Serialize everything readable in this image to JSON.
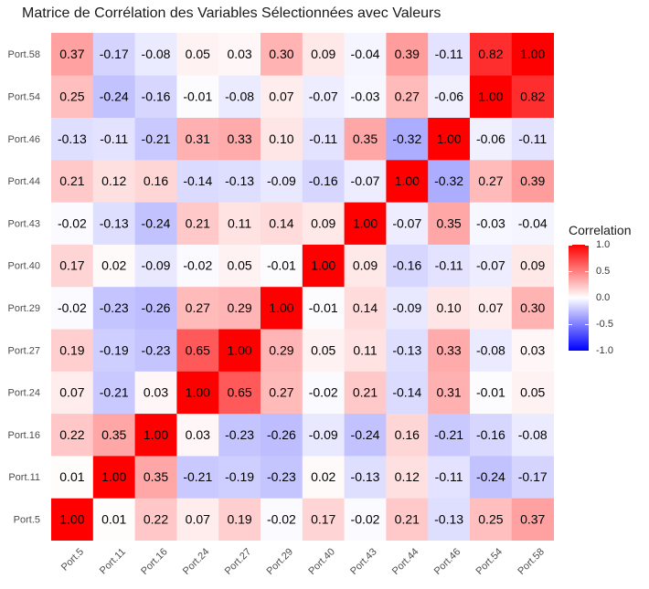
{
  "chart_data": {
    "type": "heatmap",
    "title": "Matrice de Corrélation des Variables Sélectionnées avec Valeurs",
    "x_labels": [
      "Port.5",
      "Port.11",
      "Port.16",
      "Port.24",
      "Port.27",
      "Port.29",
      "Port.40",
      "Port.43",
      "Port.44",
      "Port.46",
      "Port.54",
      "Port.58"
    ],
    "y_labels_bottom_to_top": [
      "Port.5",
      "Port.11",
      "Port.16",
      "Port.24",
      "Port.27",
      "Port.29",
      "Port.40",
      "Port.43",
      "Port.44",
      "Port.46",
      "Port.54",
      "Port.58"
    ],
    "matrix": [
      [
        1.0,
        0.01,
        0.22,
        0.07,
        0.19,
        -0.02,
        0.17,
        -0.02,
        0.21,
        -0.13,
        0.25,
        0.37
      ],
      [
        0.01,
        1.0,
        0.35,
        -0.21,
        -0.19,
        -0.23,
        0.02,
        -0.13,
        0.12,
        -0.11,
        -0.24,
        -0.17
      ],
      [
        0.22,
        0.35,
        1.0,
        0.03,
        -0.23,
        -0.26,
        -0.09,
        -0.24,
        0.16,
        -0.21,
        -0.16,
        -0.08
      ],
      [
        0.07,
        -0.21,
        0.03,
        1.0,
        0.65,
        0.27,
        -0.02,
        0.21,
        -0.14,
        0.31,
        -0.01,
        0.05
      ],
      [
        0.19,
        -0.19,
        -0.23,
        0.65,
        1.0,
        0.29,
        0.05,
        0.11,
        -0.13,
        0.33,
        -0.08,
        0.03
      ],
      [
        -0.02,
        -0.23,
        -0.26,
        0.27,
        0.29,
        1.0,
        -0.01,
        0.14,
        -0.09,
        0.1,
        0.07,
        0.3
      ],
      [
        0.17,
        0.02,
        -0.09,
        -0.02,
        0.05,
        -0.01,
        1.0,
        0.09,
        -0.16,
        -0.11,
        -0.07,
        0.09
      ],
      [
        -0.02,
        -0.13,
        -0.24,
        0.21,
        0.11,
        0.14,
        0.09,
        1.0,
        -0.07,
        0.35,
        -0.03,
        -0.04
      ],
      [
        0.21,
        0.12,
        0.16,
        -0.14,
        -0.13,
        -0.09,
        -0.16,
        -0.07,
        1.0,
        -0.32,
        0.27,
        0.39
      ],
      [
        -0.13,
        -0.11,
        -0.21,
        0.31,
        0.33,
        0.1,
        -0.11,
        0.35,
        -0.32,
        1.0,
        -0.06,
        -0.11
      ],
      [
        0.25,
        -0.24,
        -0.16,
        -0.01,
        -0.08,
        0.07,
        -0.07,
        -0.03,
        0.27,
        -0.06,
        1.0,
        0.82
      ],
      [
        0.37,
        -0.17,
        -0.08,
        0.05,
        0.03,
        0.3,
        0.09,
        -0.04,
        0.39,
        -0.11,
        0.82,
        1.0
      ]
    ],
    "value_range": [
      -1,
      1
    ],
    "color_scale": {
      "low": "#0000ff",
      "mid": "#ffffff",
      "high": "#ff0000"
    },
    "legend": {
      "title": "Correlation",
      "placement": "right",
      "ticks": [
        1.0,
        0.5,
        0.0,
        -0.5,
        -1.0
      ],
      "tick_labels": [
        "1.0",
        "0.5",
        "0.0",
        "-0.5",
        "-1.0"
      ]
    },
    "grid": false
  }
}
